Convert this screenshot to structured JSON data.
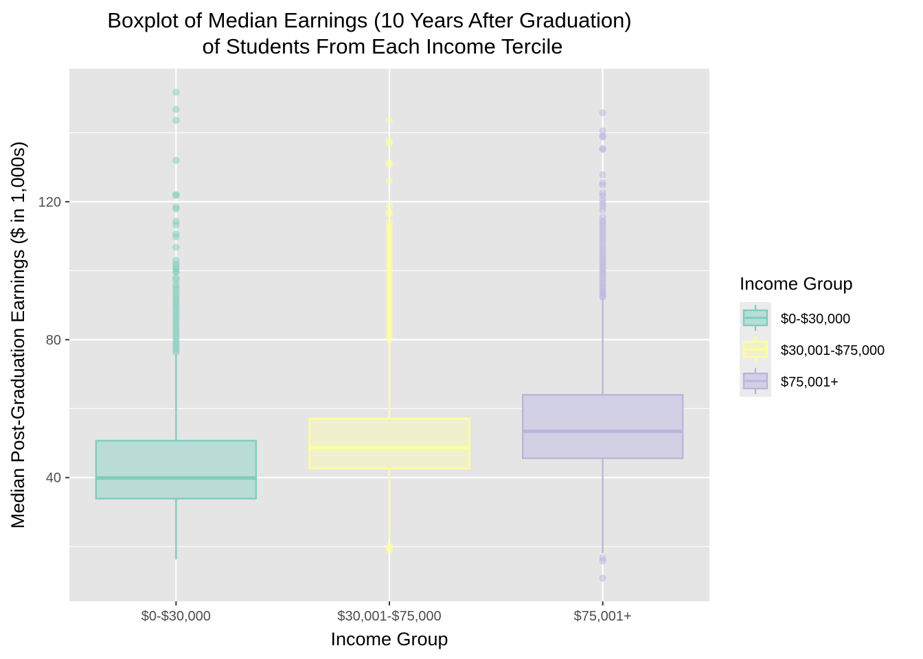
{
  "chart_data": {
    "type": "boxplot",
    "title": [
      "Boxplot of Median Earnings (10 Years After Graduation)",
      "of Students From Each Income Tercile"
    ],
    "xlabel": "Income Group",
    "ylabel": "Median Post-Graduation Earnings ($ in 1,000s)",
    "categories": [
      "$0-$30,000",
      "$30,001-$75,000",
      "$75,001+"
    ],
    "ylim": [
      4.1,
      158.6
    ],
    "y_major_ticks": [
      40,
      80,
      120
    ],
    "y_minor_gridlines": [
      20,
      60,
      100,
      140
    ],
    "grid": true,
    "legend": {
      "title": "Income Group",
      "position": "right",
      "entries": [
        "$0-$30,000",
        "$30,001-$75,000",
        "$75,001+"
      ]
    },
    "series": [
      {
        "name": "$0-$30,000",
        "color": "#7fcdbb",
        "fill": "#b9dcd6",
        "q1": 33.9,
        "median": 39.9,
        "q3": 50.7,
        "whisker_low": 16.2,
        "whisker_high": 75.8,
        "outliers": [
          151.8,
          146.8,
          143.6,
          132.0,
          122.0,
          121.9,
          118.5,
          117.9,
          114.3,
          113.3,
          110.6,
          109.8,
          106.8,
          103.0,
          102.0,
          101.3,
          100.6,
          99.9,
          99.5,
          98.0,
          97.3,
          96.0,
          95.2,
          94.4,
          93.4,
          92.5,
          91.7,
          90.9,
          90.1,
          89.3,
          88.5,
          87.6,
          86.8,
          86.0,
          85.2,
          84.3,
          83.5,
          82.7,
          81.9,
          81.1,
          80.2,
          79.4,
          78.6,
          77.8,
          77.0,
          76.3
        ]
      },
      {
        "name": "$30,001-$75,000",
        "color": "#ffff99",
        "fill": "#f0f0cc",
        "q1": 42.6,
        "median": 48.7,
        "q3": 57.1,
        "whisker_low": 22.1,
        "whisker_high": 79.2,
        "outliers": [
          143.6,
          137.6,
          136.8,
          131.2,
          130.8,
          126.0,
          118.8,
          117.0,
          116.4,
          114.2,
          113.0,
          112.2,
          111.3,
          110.4,
          109.6,
          108.7,
          107.9,
          107.0,
          106.2,
          105.3,
          104.5,
          103.6,
          102.8,
          102.0,
          101.1,
          100.3,
          99.4,
          98.6,
          97.7,
          96.9,
          96.0,
          95.2,
          94.3,
          93.5,
          92.6,
          91.8,
          91.0,
          90.1,
          89.3,
          88.4,
          87.6,
          86.7,
          85.9,
          85.0,
          84.2,
          83.3,
          82.5,
          81.6,
          80.8,
          80.0,
          20.2,
          19.4,
          18.8
        ]
      },
      {
        "name": "$75,001+",
        "color": "#bcb4dd",
        "fill": "#d2d0e4",
        "q1": 45.6,
        "median": 53.4,
        "q3": 64.0,
        "whisker_low": 18.0,
        "whisker_high": 92.0,
        "outliers": [
          145.8,
          140.5,
          139.0,
          138.8,
          135.4,
          135.2,
          127.8,
          125.5,
          124.8,
          122.6,
          121.8,
          120.5,
          119.6,
          118.6,
          117.6,
          115.5,
          114.4,
          113.8,
          112.9,
          112.0,
          111.1,
          110.2,
          109.3,
          108.5,
          107.4,
          106.5,
          105.7,
          104.8,
          104.0,
          103.2,
          102.4,
          101.6,
          100.8,
          100.0,
          99.3,
          98.6,
          97.8,
          97.0,
          96.3,
          95.5,
          94.8,
          94.0,
          93.4,
          92.8,
          92.3,
          16.7,
          15.8,
          10.8
        ]
      }
    ]
  }
}
